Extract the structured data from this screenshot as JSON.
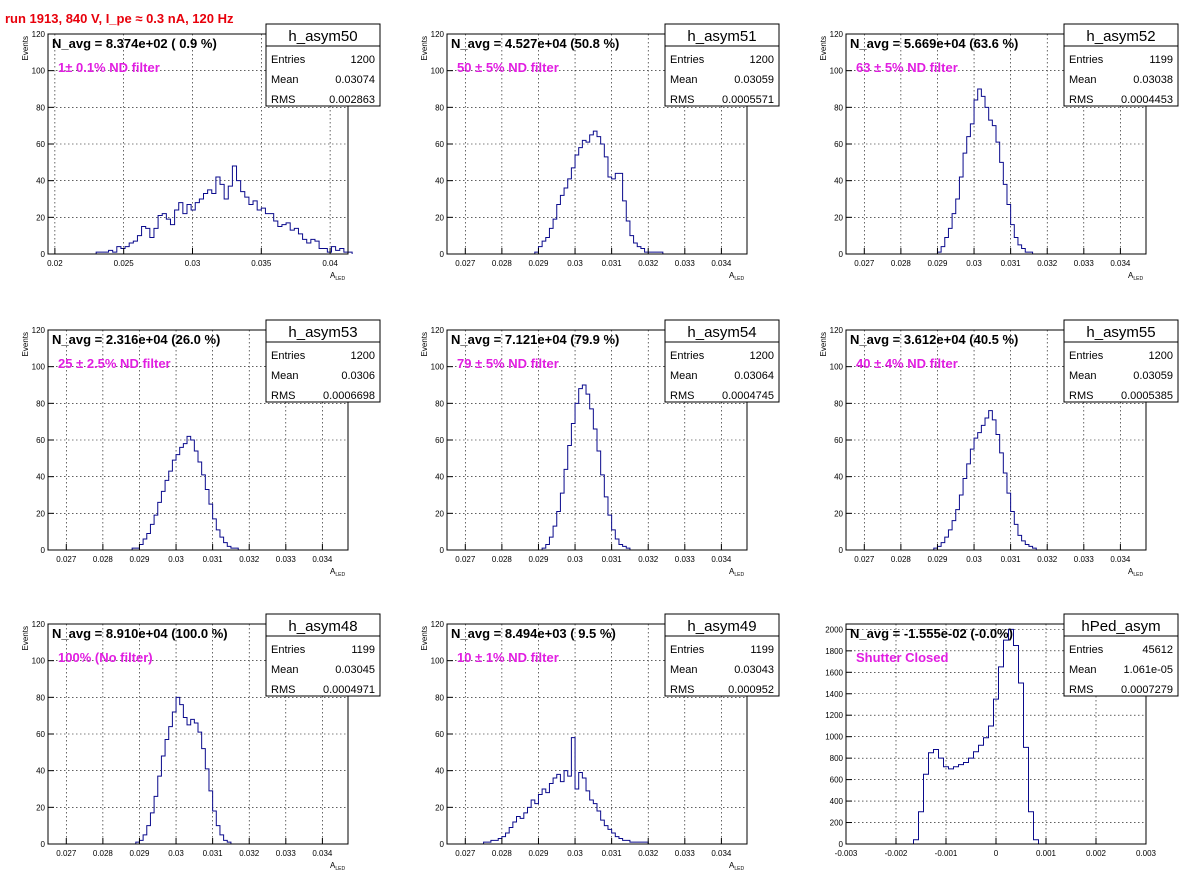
{
  "suptitle": "run 1913,   840 V, I_pe ≈ 0.3 nA, 120 Hz",
  "colors": {
    "histogram": "#0a0a8c",
    "annotation": "#e11ee1",
    "title": "#e8000b",
    "grid": "#000000"
  },
  "stat_labels": [
    "Entries",
    "Mean",
    "RMS"
  ],
  "chart_data": [
    {
      "type": "histogram",
      "histname": "h_asym50",
      "avg_text": "N_avg = 8.374e+02 ( 0.9 %)",
      "filter_text": "1± 0.1% ND filter",
      "entries": "1200",
      "mean": "0.03074",
      "rms": "0.002863",
      "ylabel": "Events",
      "xlabel": "A",
      "xlabel_sub": "LED",
      "xlim": [
        0.0195,
        0.0413
      ],
      "ylim": [
        0,
        120
      ],
      "xticks": [
        0.02,
        0.025,
        0.03,
        0.035,
        0.04
      ],
      "xticklabels": [
        "0.02",
        "0.025",
        "0.03",
        "0.035",
        "0.04"
      ],
      "yticks": [
        0,
        20,
        40,
        60,
        80,
        100,
        120
      ],
      "bin_start": 0.023,
      "bin_width": 0.0003,
      "counts": [
        1,
        1,
        1,
        2,
        1,
        4,
        3,
        4,
        6,
        7,
        10,
        15,
        14,
        9,
        14,
        21,
        22,
        19,
        16,
        24,
        28,
        22,
        27,
        24,
        28,
        30,
        33,
        35,
        33,
        42,
        38,
        30,
        37,
        48,
        40,
        34,
        31,
        27,
        29,
        24,
        25,
        22,
        22,
        18,
        15,
        16,
        17,
        13,
        14,
        11,
        8,
        6,
        8,
        7,
        3,
        3,
        1,
        4,
        2,
        3,
        1,
        1
      ]
    },
    {
      "type": "histogram",
      "histname": "h_asym51",
      "avg_text": "N_avg = 4.527e+04 (50.8 %)",
      "filter_text": "50 ± 5% ND filter",
      "entries": "1200",
      "mean": "0.03059",
      "rms": "0.0005571",
      "ylabel": "Events",
      "xlabel": "A",
      "xlabel_sub": "LED",
      "xlim": [
        0.0265,
        0.0347
      ],
      "ylim": [
        0,
        120
      ],
      "xticks": [
        0.027,
        0.028,
        0.029,
        0.03,
        0.031,
        0.032,
        0.033,
        0.034
      ],
      "xticklabels": [
        "0.027",
        "0.028",
        "0.029",
        "0.03",
        "0.031",
        "0.032",
        "0.033",
        "0.034"
      ],
      "yticks": [
        0,
        20,
        40,
        60,
        80,
        100,
        120
      ],
      "bin_start": 0.0289,
      "bin_width": 0.0001,
      "counts": [
        1,
        4,
        7,
        9,
        14,
        19,
        27,
        32,
        36,
        41,
        47,
        54,
        58,
        62,
        61,
        65,
        67,
        64,
        60,
        53,
        42,
        41,
        44,
        44,
        29,
        18,
        10,
        6,
        4,
        3,
        1,
        1,
        1,
        1,
        1
      ]
    },
    {
      "type": "histogram",
      "histname": "h_asym52",
      "avg_text": "N_avg = 5.669e+04 (63.6 %)",
      "filter_text": "63 ± 5% ND filter",
      "entries": "1199",
      "mean": "0.03038",
      "rms": "0.0004453",
      "ylabel": "Events",
      "xlabel": "A",
      "xlabel_sub": "LED",
      "xlim": [
        0.0265,
        0.0347
      ],
      "ylim": [
        0,
        120
      ],
      "xticks": [
        0.027,
        0.028,
        0.029,
        0.03,
        0.031,
        0.032,
        0.033,
        0.034
      ],
      "xticklabels": [
        "0.027",
        "0.028",
        "0.029",
        "0.03",
        "0.031",
        "0.032",
        "0.033",
        "0.034"
      ],
      "yticks": [
        0,
        20,
        40,
        60,
        80,
        100,
        120
      ],
      "bin_start": 0.029,
      "bin_width": 0.0001,
      "counts": [
        1,
        4,
        9,
        14,
        22,
        30,
        42,
        55,
        64,
        71,
        84,
        90,
        86,
        80,
        73,
        70,
        61,
        50,
        38,
        27,
        16,
        9,
        5,
        3,
        1,
        1
      ]
    },
    {
      "type": "histogram",
      "histname": "h_asym53",
      "avg_text": "N_avg = 2.316e+04 (26.0 %)",
      "filter_text": "25 ± 2.5% ND filter",
      "entries": "1200",
      "mean": "0.0306",
      "rms": "0.0006698",
      "ylabel": "Events",
      "xlabel": "A",
      "xlabel_sub": "LED",
      "xlim": [
        0.0265,
        0.0347
      ],
      "ylim": [
        0,
        120
      ],
      "xticks": [
        0.027,
        0.028,
        0.029,
        0.03,
        0.031,
        0.032,
        0.033,
        0.034
      ],
      "xticklabels": [
        "0.027",
        "0.028",
        "0.029",
        "0.03",
        "0.031",
        "0.032",
        "0.033",
        "0.034"
      ],
      "yticks": [
        0,
        20,
        40,
        60,
        80,
        100,
        120
      ],
      "bin_start": 0.0288,
      "bin_width": 0.0001,
      "counts": [
        1,
        1,
        3,
        6,
        9,
        14,
        19,
        26,
        32,
        38,
        43,
        49,
        52,
        56,
        58,
        62,
        60,
        54,
        48,
        41,
        33,
        25,
        17,
        11,
        7,
        4,
        2,
        1,
        1
      ]
    },
    {
      "type": "histogram",
      "histname": "h_asym54",
      "avg_text": "N_avg = 7.121e+04 (79.9 %)",
      "filter_text": "79 ± 5% ND filter",
      "entries": "1200",
      "mean": "0.03064",
      "rms": "0.0004745",
      "ylabel": "Events",
      "xlabel": "A",
      "xlabel_sub": "LED",
      "xlim": [
        0.0265,
        0.0347
      ],
      "ylim": [
        0,
        120
      ],
      "xticks": [
        0.027,
        0.028,
        0.029,
        0.03,
        0.031,
        0.032,
        0.033,
        0.034
      ],
      "xticklabels": [
        "0.027",
        "0.028",
        "0.029",
        "0.03",
        "0.031",
        "0.032",
        "0.033",
        "0.034"
      ],
      "yticks": [
        0,
        20,
        40,
        60,
        80,
        100,
        120
      ],
      "bin_start": 0.0291,
      "bin_width": 0.0001,
      "counts": [
        1,
        3,
        7,
        13,
        21,
        31,
        44,
        57,
        69,
        80,
        88,
        90,
        85,
        77,
        66,
        54,
        41,
        29,
        19,
        11,
        6,
        3,
        2,
        1
      ]
    },
    {
      "type": "histogram",
      "histname": "h_asym55",
      "avg_text": "N_avg = 3.612e+04 (40.5 %)",
      "filter_text": "40 ± 4% ND filter",
      "entries": "1200",
      "mean": "0.03059",
      "rms": "0.0005385",
      "ylabel": "Events",
      "xlabel": "A",
      "xlabel_sub": "LED",
      "xlim": [
        0.0265,
        0.0347
      ],
      "ylim": [
        0,
        120
      ],
      "xticks": [
        0.027,
        0.028,
        0.029,
        0.03,
        0.031,
        0.032,
        0.033,
        0.034
      ],
      "xticklabels": [
        "0.027",
        "0.028",
        "0.029",
        "0.03",
        "0.031",
        "0.032",
        "0.033",
        "0.034"
      ],
      "yticks": [
        0,
        20,
        40,
        60,
        80,
        100,
        120
      ],
      "bin_start": 0.0289,
      "bin_width": 0.0001,
      "counts": [
        1,
        2,
        4,
        7,
        11,
        16,
        22,
        30,
        39,
        47,
        55,
        61,
        64,
        68,
        72,
        76,
        71,
        63,
        53,
        42,
        31,
        21,
        14,
        8,
        5,
        3,
        2,
        1
      ]
    },
    {
      "type": "histogram",
      "histname": "h_asym48",
      "avg_text": "N_avg = 8.910e+04 (100.0 %)",
      "filter_text": "100% (No filter)",
      "entries": "1199",
      "mean": "0.03045",
      "rms": "0.0004971",
      "ylabel": "Events",
      "xlabel": "A",
      "xlabel_sub": "LED",
      "xlim": [
        0.0265,
        0.0347
      ],
      "ylim": [
        0,
        120
      ],
      "xticks": [
        0.027,
        0.028,
        0.029,
        0.03,
        0.031,
        0.032,
        0.033,
        0.034
      ],
      "xticklabels": [
        "0.027",
        "0.028",
        "0.029",
        "0.03",
        "0.031",
        "0.032",
        "0.033",
        "0.034"
      ],
      "yticks": [
        0,
        20,
        40,
        60,
        80,
        100,
        120
      ],
      "bin_start": 0.0289,
      "bin_width": 0.0001,
      "counts": [
        1,
        2,
        5,
        10,
        17,
        26,
        37,
        48,
        57,
        64,
        72,
        80,
        76,
        69,
        65,
        68,
        66,
        61,
        52,
        41,
        29,
        18,
        10,
        5,
        2,
        1
      ]
    },
    {
      "type": "histogram",
      "histname": "h_asym49",
      "avg_text": "N_avg = 8.494e+03 ( 9.5 %)",
      "filter_text": "10 ± 1% ND filter",
      "entries": "1199",
      "mean": "0.03043",
      "rms": "0.000952",
      "ylabel": "Events",
      "xlabel": "A",
      "xlabel_sub": "LED",
      "xlim": [
        0.0265,
        0.0347
      ],
      "ylim": [
        0,
        120
      ],
      "xticks": [
        0.027,
        0.028,
        0.029,
        0.03,
        0.031,
        0.032,
        0.033,
        0.034
      ],
      "xticklabels": [
        "0.027",
        "0.028",
        "0.029",
        "0.03",
        "0.031",
        "0.032",
        "0.033",
        "0.034"
      ],
      "yticks": [
        0,
        20,
        40,
        60,
        80,
        100,
        120
      ],
      "bin_start": 0.0275,
      "bin_width": 0.0001,
      "counts": [
        1,
        1,
        2,
        2,
        3,
        4,
        6,
        9,
        12,
        15,
        14,
        17,
        20,
        24,
        22,
        27,
        30,
        28,
        33,
        36,
        38,
        34,
        40,
        37,
        58,
        30,
        39,
        36,
        29,
        24,
        22,
        18,
        13,
        10,
        8,
        6,
        4,
        3,
        2,
        2,
        1,
        1,
        1,
        1,
        1
      ]
    },
    {
      "type": "histogram",
      "histname": "hPed_asym",
      "avg_text": "N_avg = -1.555e-02 (-0.0%)",
      "filter_text": "Shutter Closed",
      "entries": "45612",
      "mean": "1.061e-05",
      "rms": "0.0007279",
      "ylabel": "",
      "xlabel": "",
      "xlabel_sub": "",
      "xlim": [
        -0.003,
        0.003
      ],
      "ylim": [
        0,
        2050
      ],
      "xticks": [
        -0.003,
        -0.002,
        -0.001,
        0,
        0.001,
        0.002,
        0.003
      ],
      "xticklabels": [
        "-0.003",
        "-0.002",
        "-0.001",
        "0",
        "0.001",
        "0.002",
        "0.003"
      ],
      "yticks": [
        0,
        200,
        400,
        600,
        800,
        1000,
        1200,
        1400,
        1600,
        1800,
        2000
      ],
      "bin_start": -0.00165,
      "bin_width": 0.0001,
      "counts": [
        40,
        300,
        650,
        850,
        880,
        800,
        720,
        700,
        720,
        740,
        760,
        800,
        860,
        920,
        990,
        1100,
        1350,
        1650,
        1900,
        2000,
        1850,
        1500,
        900,
        300,
        40
      ]
    }
  ]
}
